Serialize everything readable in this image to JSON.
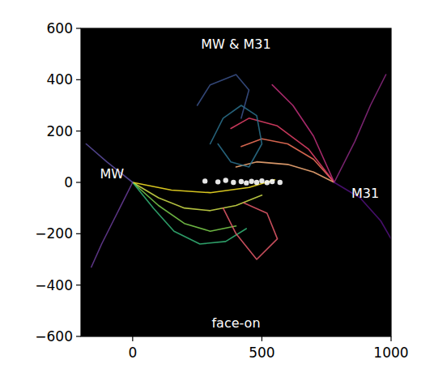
{
  "chart_data": {
    "type": "line",
    "xlim": [
      -200,
      1000
    ],
    "ylim": [
      -600,
      600
    ],
    "xticks": [
      0,
      500,
      1000
    ],
    "yticks": [
      {
        "value": -600,
        "label": "−600"
      },
      {
        "value": -400,
        "label": "−400"
      },
      {
        "value": -200,
        "label": "−200"
      },
      0,
      200,
      400,
      600
    ],
    "annotations": [
      {
        "text": "MW & M31",
        "x": 400,
        "y": 540
      },
      {
        "text": "face-on",
        "x": 400,
        "y": -545
      },
      {
        "text": "MW",
        "x": -80,
        "y": 35
      },
      {
        "text": "M31",
        "x": 900,
        "y": -40
      }
    ],
    "series": [
      {
        "color": "#d4e34a",
        "x": [
          0,
          100,
          200,
          300,
          400,
          500
        ],
        "values": [
          0,
          -60,
          -100,
          -110,
          -90,
          -50
        ]
      },
      {
        "color": "#7fd34e",
        "x": [
          0,
          100,
          200,
          300,
          400
        ],
        "values": [
          0,
          -90,
          -160,
          -190,
          -170
        ]
      },
      {
        "color": "#35b779",
        "x": [
          0,
          80,
          160,
          260,
          360,
          440
        ],
        "values": [
          0,
          -100,
          -190,
          -240,
          -230,
          -180
        ]
      },
      {
        "color": "#fde725",
        "x": [
          0,
          150,
          300,
          450,
          550
        ],
        "values": [
          0,
          -30,
          -40,
          -20,
          10
        ]
      },
      {
        "color": "#6a3d9a",
        "x": [
          0,
          -60,
          -120,
          -160
        ],
        "values": [
          0,
          -120,
          -240,
          -330
        ]
      },
      {
        "color": "#5e4fa2",
        "x": [
          0,
          -100,
          -180
        ],
        "values": [
          0,
          80,
          150
        ]
      },
      {
        "color": "#f8765c",
        "x": [
          780,
          700,
          600,
          500,
          420
        ],
        "values": [
          0,
          90,
          150,
          170,
          140
        ]
      },
      {
        "color": "#e8416a",
        "x": [
          780,
          680,
          560,
          450,
          380
        ],
        "values": [
          0,
          130,
          220,
          250,
          210
        ]
      },
      {
        "color": "#fcb07a",
        "x": [
          780,
          700,
          600,
          480,
          400
        ],
        "values": [
          0,
          40,
          70,
          80,
          60
        ]
      },
      {
        "color": "#c3307c",
        "x": [
          780,
          700,
          620,
          540
        ],
        "values": [
          0,
          180,
          300,
          380
        ]
      },
      {
        "color": "#8c2981",
        "x": [
          780,
          860,
          920,
          980
        ],
        "values": [
          0,
          160,
          300,
          420
        ]
      },
      {
        "color": "#51127c",
        "x": [
          780,
          880,
          960,
          1000
        ],
        "values": [
          0,
          -60,
          -150,
          -220
        ]
      },
      {
        "color": "#2c728e",
        "x": [
          300,
          350,
          420,
          480,
          500,
          450,
          380,
          330
        ],
        "values": [
          150,
          250,
          300,
          260,
          150,
          60,
          80,
          150
        ]
      },
      {
        "color": "#e85a6b",
        "x": [
          350,
          400,
          480,
          560,
          520,
          430
        ],
        "values": [
          -100,
          -200,
          -300,
          -220,
          -120,
          -80
        ]
      },
      {
        "color": "#3b528b",
        "x": [
          250,
          300,
          400,
          450,
          420
        ],
        "values": [
          300,
          380,
          420,
          360,
          250
        ]
      },
      {
        "type": "scatter",
        "marker": "circle",
        "color": "#ffffff",
        "x": [
          280,
          330,
          360,
          390,
          420,
          440,
          460,
          480,
          500,
          520,
          540,
          570
        ],
        "values": [
          5,
          2,
          8,
          0,
          3,
          -2,
          4,
          0,
          6,
          -1,
          3,
          0
        ]
      }
    ]
  }
}
